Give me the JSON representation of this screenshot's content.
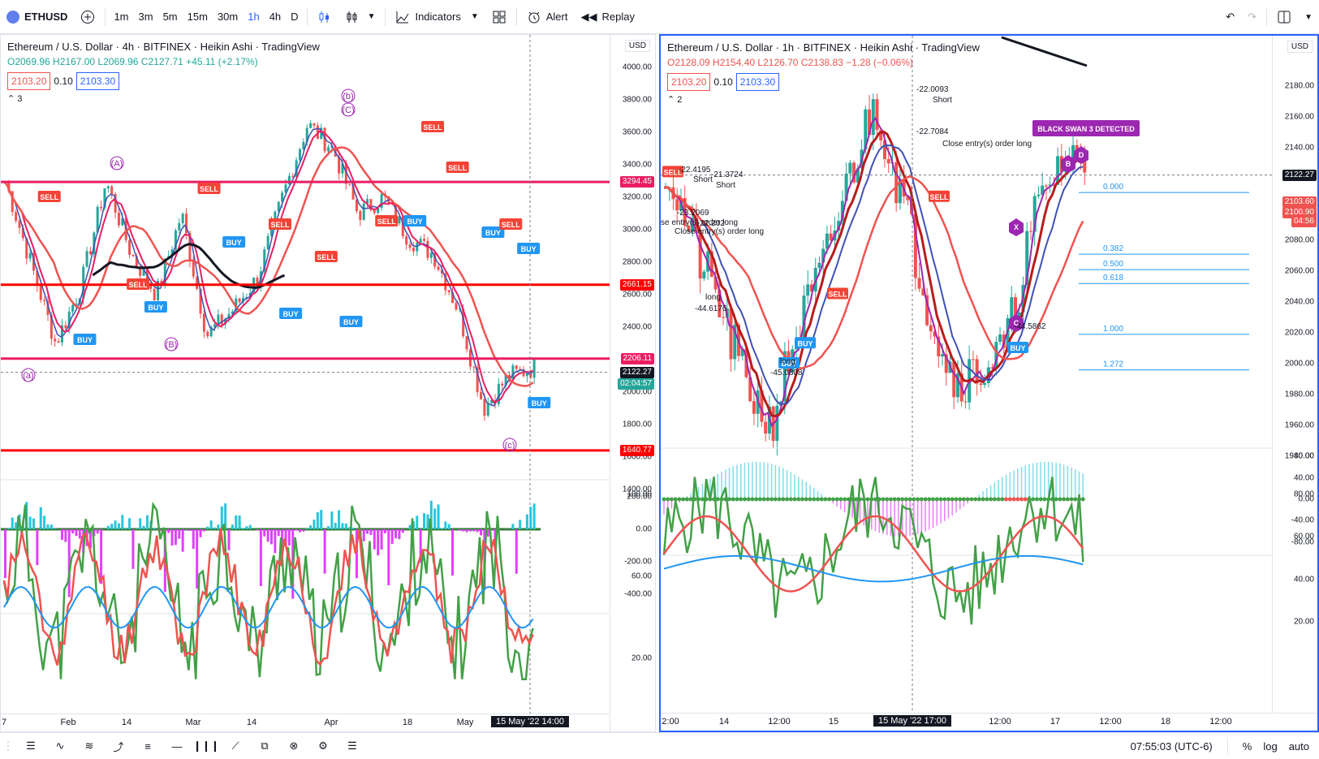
{
  "toolbar": {
    "symbol": "ETHUSD",
    "intervals": [
      "1m",
      "3m",
      "5m",
      "15m",
      "30m",
      "1h",
      "4h",
      "D"
    ],
    "indicators": "Indicators",
    "alert": "Alert",
    "replay": "Replay"
  },
  "left": {
    "title": "Ethereum / U.S. Dollar · 4h · BITFINEX · Heikin Ashi · TradingView",
    "ohlc": "O2069.96 H2167.00 L2069.96 C2127.71 +45.11 (+2.17%)",
    "box1": "2103.20",
    "step": "0.10",
    "box2": "2103.30",
    "usd": "USD",
    "price_ticks": [
      "4000.00",
      "3800.00",
      "3600.00",
      "3400.00",
      "3200.00",
      "3000.00",
      "2800.00",
      "2600.00",
      "2400.00",
      "2200.00",
      "2000.00",
      "1800.00",
      "1600.00",
      "1400.00"
    ],
    "osc1_ticks": [
      "200.00",
      "0.00",
      "-200.00",
      "-400.00"
    ],
    "osc2_ticks": [
      "100.00",
      "60.00",
      "20.00"
    ],
    "levels": [
      "3294.45",
      "2661.15",
      "2206.11",
      "1640.77"
    ],
    "last_price": "2122.27",
    "countdown": "02:04:57",
    "time_labels": [
      "7",
      "Feb",
      "14",
      "Mar",
      "14",
      "Apr",
      "18",
      "May"
    ],
    "cursor_time": "15 May '22   14:00",
    "wave_labels": [
      "(b)",
      "(A)",
      "(B)",
      "(a)",
      "(c)",
      "(C)"
    ],
    "layer_count": "3"
  },
  "right": {
    "title": "Ethereum / U.S. Dollar · 1h · BITFINEX · Heikin Ashi · TradingView",
    "ohlc": "O2128.09 H2154.40 L2126.70 C2138.83 −1.28 (−0.06%)",
    "box1": "2103.20",
    "step": "0.10",
    "box2": "2103.30",
    "usd": "USD",
    "price_ticks": [
      "2180.00",
      "2160.00",
      "2140.00",
      "2120.00",
      "2100.00",
      "2080.00",
      "2060.00",
      "2040.00",
      "2020.00",
      "2000.00",
      "1980.00",
      "1960.00",
      "1940.00"
    ],
    "osc1_ticks": [
      "80.00",
      "40.00",
      "0.00",
      "-40.00",
      "-80.00"
    ],
    "osc2_ticks": [
      "80.00",
      "60.00",
      "40.00",
      "20.00"
    ],
    "last_price": "2122.27",
    "price2": "2103.60",
    "price3": "2100.90",
    "countdown": "04:56",
    "fib": [
      "0.000",
      "0.382",
      "0.500",
      "0.618",
      "1.000",
      "1.272"
    ],
    "black_swan": "BLACK SWAN 3 DETECTED",
    "time_labels": [
      "2:00",
      "14",
      "12:00",
      "15",
      "12:00",
      "17",
      "12:00",
      "18",
      "12:00"
    ],
    "cursor_time": "15 May '22   17:00",
    "annotations": [
      "-22.0093",
      "Short",
      "-22.7084",
      "Close entry(s) order long",
      "-22.4195",
      "Short",
      "-21.3724",
      "Short",
      "-23.2069",
      "-22.202",
      "se entry(s) order long",
      "Close entry(s) order long",
      "long",
      "-44.6176",
      "long",
      "-45.0808",
      "-44.5862"
    ],
    "layer_count": "2"
  },
  "status": {
    "clock": "07:55:03 (UTC-6)",
    "pct": "%",
    "log": "log",
    "auto": "auto"
  },
  "colors": {
    "buy": "#2196f3",
    "sell": "#f44336",
    "accent": "#2962ff",
    "level": "#e91e63",
    "pattern": "#9c27b0"
  }
}
